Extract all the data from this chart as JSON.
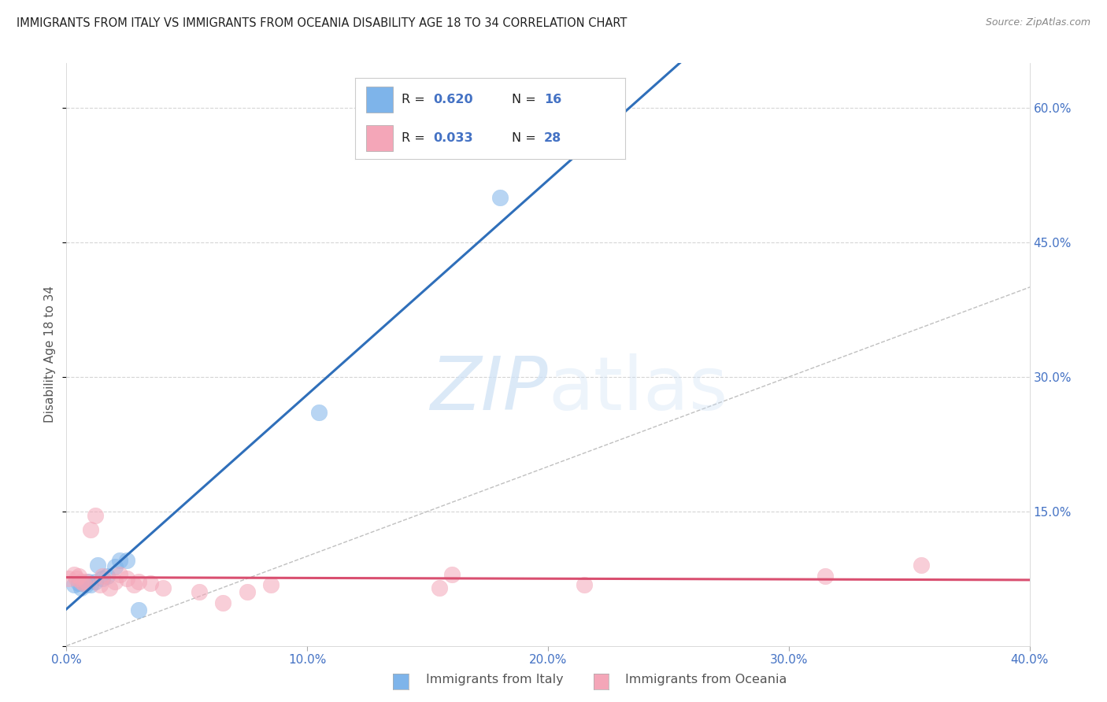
{
  "title": "IMMIGRANTS FROM ITALY VS IMMIGRANTS FROM OCEANIA DISABILITY AGE 18 TO 34 CORRELATION CHART",
  "source": "Source: ZipAtlas.com",
  "ylabel": "Disability Age 18 to 34",
  "xlim": [
    0.0,
    0.4
  ],
  "ylim": [
    0.0,
    0.65
  ],
  "xticks": [
    0.0,
    0.1,
    0.2,
    0.3,
    0.4
  ],
  "yticks": [
    0.0,
    0.15,
    0.3,
    0.45,
    0.6
  ],
  "italy_color": "#7eb4ea",
  "italy_edge_color": "#5a9fd4",
  "oceania_color": "#f4a6b8",
  "oceania_edge_color": "#e07090",
  "italy_R": 0.62,
  "italy_N": 16,
  "oceania_R": 0.033,
  "oceania_N": 28,
  "italy_x": [
    0.003,
    0.005,
    0.006,
    0.008,
    0.009,
    0.01,
    0.012,
    0.013,
    0.015,
    0.017,
    0.02,
    0.022,
    0.025,
    0.03,
    0.105,
    0.18
  ],
  "italy_y": [
    0.068,
    0.07,
    0.065,
    0.068,
    0.072,
    0.068,
    0.072,
    0.09,
    0.075,
    0.078,
    0.088,
    0.095,
    0.095,
    0.04,
    0.26,
    0.5
  ],
  "oceania_x": [
    0.001,
    0.003,
    0.004,
    0.005,
    0.006,
    0.007,
    0.008,
    0.01,
    0.012,
    0.014,
    0.015,
    0.018,
    0.02,
    0.022,
    0.025,
    0.028,
    0.03,
    0.035,
    0.04,
    0.055,
    0.065,
    0.075,
    0.085,
    0.155,
    0.16,
    0.215,
    0.315,
    0.355
  ],
  "oceania_y": [
    0.075,
    0.08,
    0.075,
    0.078,
    0.072,
    0.07,
    0.072,
    0.13,
    0.145,
    0.068,
    0.078,
    0.065,
    0.072,
    0.08,
    0.075,
    0.068,
    0.072,
    0.07,
    0.065,
    0.06,
    0.048,
    0.06,
    0.068,
    0.065,
    0.08,
    0.068,
    0.078,
    0.09
  ],
  "tick_color": "#4472c4",
  "axis_label_color": "#555555",
  "grid_color": "#d5d5d5",
  "watermark_color": "#cce0f5",
  "background_color": "#ffffff",
  "title_fontsize": 10.5,
  "tick_fontsize": 11,
  "legend_fontsize": 11.5,
  "ylabel_fontsize": 11,
  "source_fontsize": 9
}
